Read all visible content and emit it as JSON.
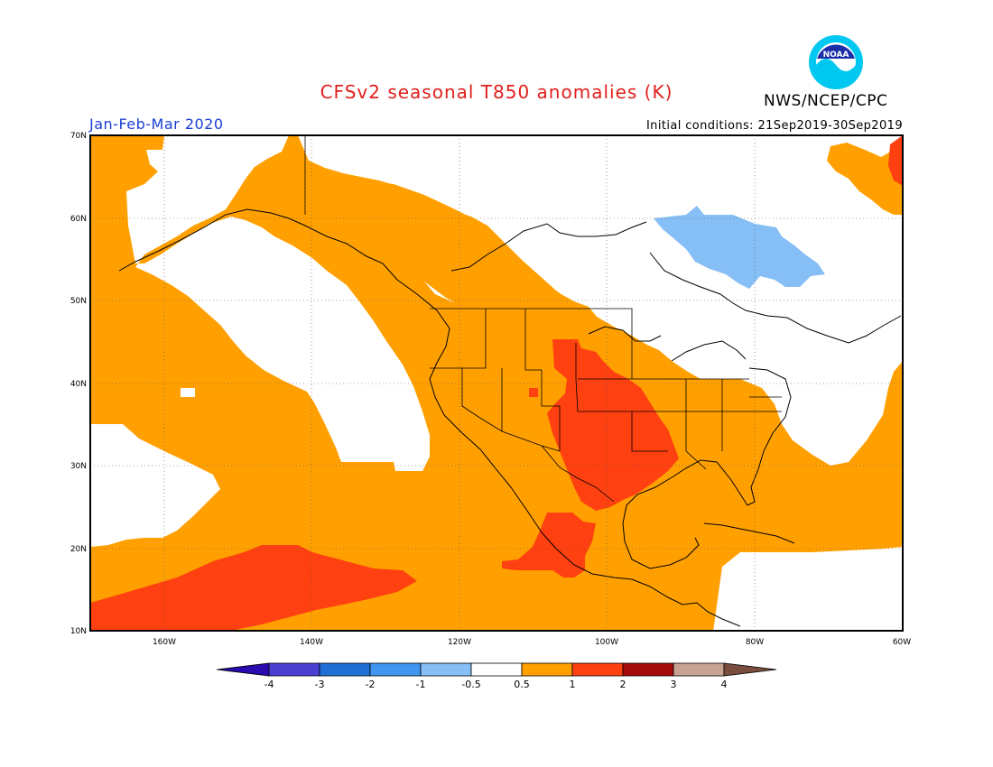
{
  "title": "CFSv2 seasonal T850 anomalies (K)",
  "agency": "NWS/NCEP/CPC",
  "logo_text": "NOAA",
  "season": "Jan-Feb-Mar 2020",
  "initial_conditions": "Initial conditions: 21Sep2019-30Sep2019",
  "lat_labels": [
    "70N",
    "60N",
    "50N",
    "40N",
    "30N",
    "20N",
    "10N"
  ],
  "lon_labels": [
    "160W",
    "140W",
    "120W",
    "100W",
    "80W",
    "60W"
  ],
  "colorbar": {
    "labels": [
      "-4",
      "-3",
      "-2",
      "-1",
      "-0.5",
      "0.5",
      "1",
      "2",
      "3",
      "4"
    ],
    "colors": [
      "#2a0bb0",
      "#4a3fd1",
      "#1f6fd6",
      "#3f95ef",
      "#86bef6",
      "#ffffff",
      "#ffa000",
      "#ff4010",
      "#a50a0a",
      "#c9a392",
      "#7a4e3e"
    ]
  },
  "colors": {
    "anomaly_warm": "#ffa000",
    "anomaly_hot": "#ff4010",
    "anomaly_very_hot": "#ee2a12",
    "anomaly_cool": "#86bef6",
    "title_red": "#e0201b",
    "season_blue": "#1a3fd6"
  }
}
